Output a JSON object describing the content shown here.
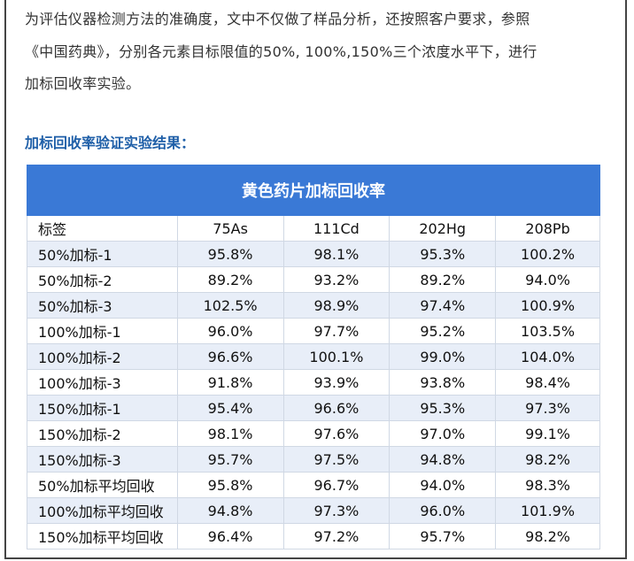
{
  "paragraph_lines": [
    "为评估仪器检测方法的准确度，文中不仅做了样品分析，还按照客户要求，参照",
    "《中国药典》，分别各元素目标限值的50%, 100%,150%三个浓度水平下，进行",
    "加标回收率实验。"
  ],
  "heading": "加标回收率验证实验结果：",
  "table": {
    "title": "黄色药片加标回收率",
    "header": [
      "标签",
      "75As",
      "111Cd",
      "202Hg",
      "208Pb"
    ],
    "rows": [
      [
        "50%加标-1",
        "95.8%",
        "98.1%",
        "95.3%",
        "100.2%"
      ],
      [
        "50%加标-2",
        "89.2%",
        "93.2%",
        "89.2%",
        "94.0%"
      ],
      [
        "50%加标-3",
        "102.5%",
        "98.9%",
        "97.4%",
        "100.9%"
      ],
      [
        "100%加标-1",
        "96.0%",
        "97.7%",
        "95.2%",
        "103.5%"
      ],
      [
        "100%加标-2",
        "96.6%",
        "100.1%",
        "99.0%",
        "104.0%"
      ],
      [
        "100%加标-3",
        "91.8%",
        "93.9%",
        "93.8%",
        "98.4%"
      ],
      [
        "150%加标-1",
        "95.4%",
        "96.6%",
        "95.3%",
        "97.3%"
      ],
      [
        "150%加标-2",
        "98.1%",
        "97.6%",
        "97.0%",
        "99.1%"
      ],
      [
        "150%加标-3",
        "95.7%",
        "97.5%",
        "94.8%",
        "98.2%"
      ],
      [
        "50%加标平均回收",
        "95.8%",
        "96.7%",
        "94.0%",
        "98.3%"
      ],
      [
        "100%加标平均回收",
        "94.8%",
        "97.3%",
        "96.0%",
        "101.9%"
      ],
      [
        "150%加标平均回收",
        "96.4%",
        "97.2%",
        "95.7%",
        "98.2%"
      ]
    ]
  }
}
